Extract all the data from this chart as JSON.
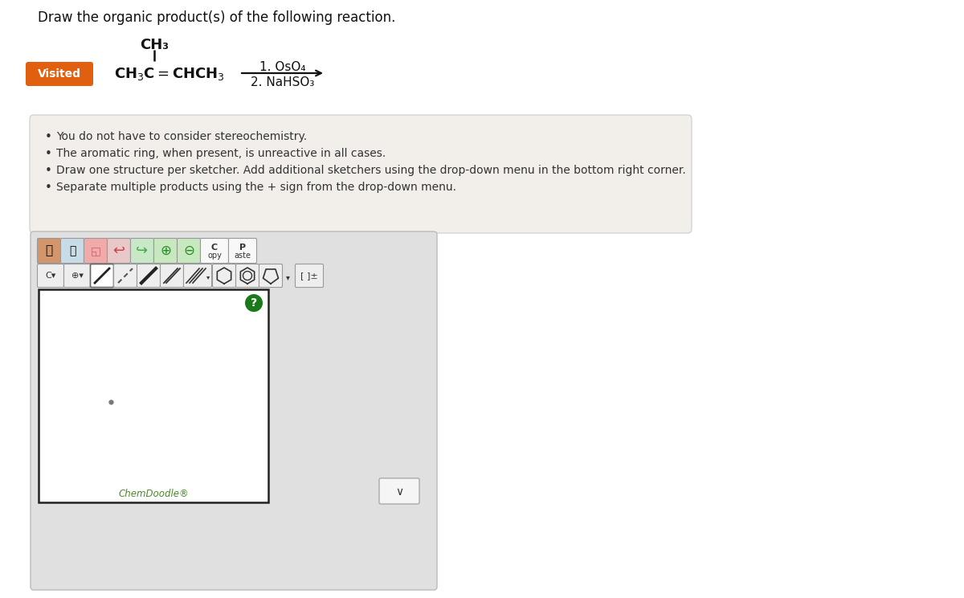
{
  "title": "Draw the organic product(s) of the following reaction.",
  "title_fontsize": 12,
  "background_color": "#ffffff",
  "visited_label": "Visited",
  "visited_bg": "#e06010",
  "visited_text_color": "#ffffff",
  "visited_fontsize": 10,
  "reagent_line1": "1. OsO₄",
  "reagent_line2": "2. NaHSO₃",
  "reagent_fontsize": 11,
  "molecule_ch3_top": "CH₃",
  "molecule_fontsize": 13,
  "bullet_lines": [
    "You do not have to consider stereochemistry.",
    "The aromatic ring, when present, is unreactive in all cases.",
    "Draw one structure per sketcher. Add additional sketchers using the drop-down menu in the bottom right corner.",
    "Separate multiple products using the + sign from the drop-down menu."
  ],
  "bullet_fontsize": 10,
  "bullet_box_color": "#f2eeea",
  "bullet_box_edge": "#cccccc",
  "chemdoodle_label": "ChemDoodle®",
  "chemdoodle_color": "#4a8a2a",
  "toolbar_bg": "#dedede",
  "toolbar_border": "#aaaaaa",
  "sketcher_bg": "#ffffff",
  "sketcher_border": "#222222",
  "question_circle_color": "#1a7a1a",
  "dropdown_border": "#aaaaaa",
  "dropdown_bg": "#f5f5f5"
}
